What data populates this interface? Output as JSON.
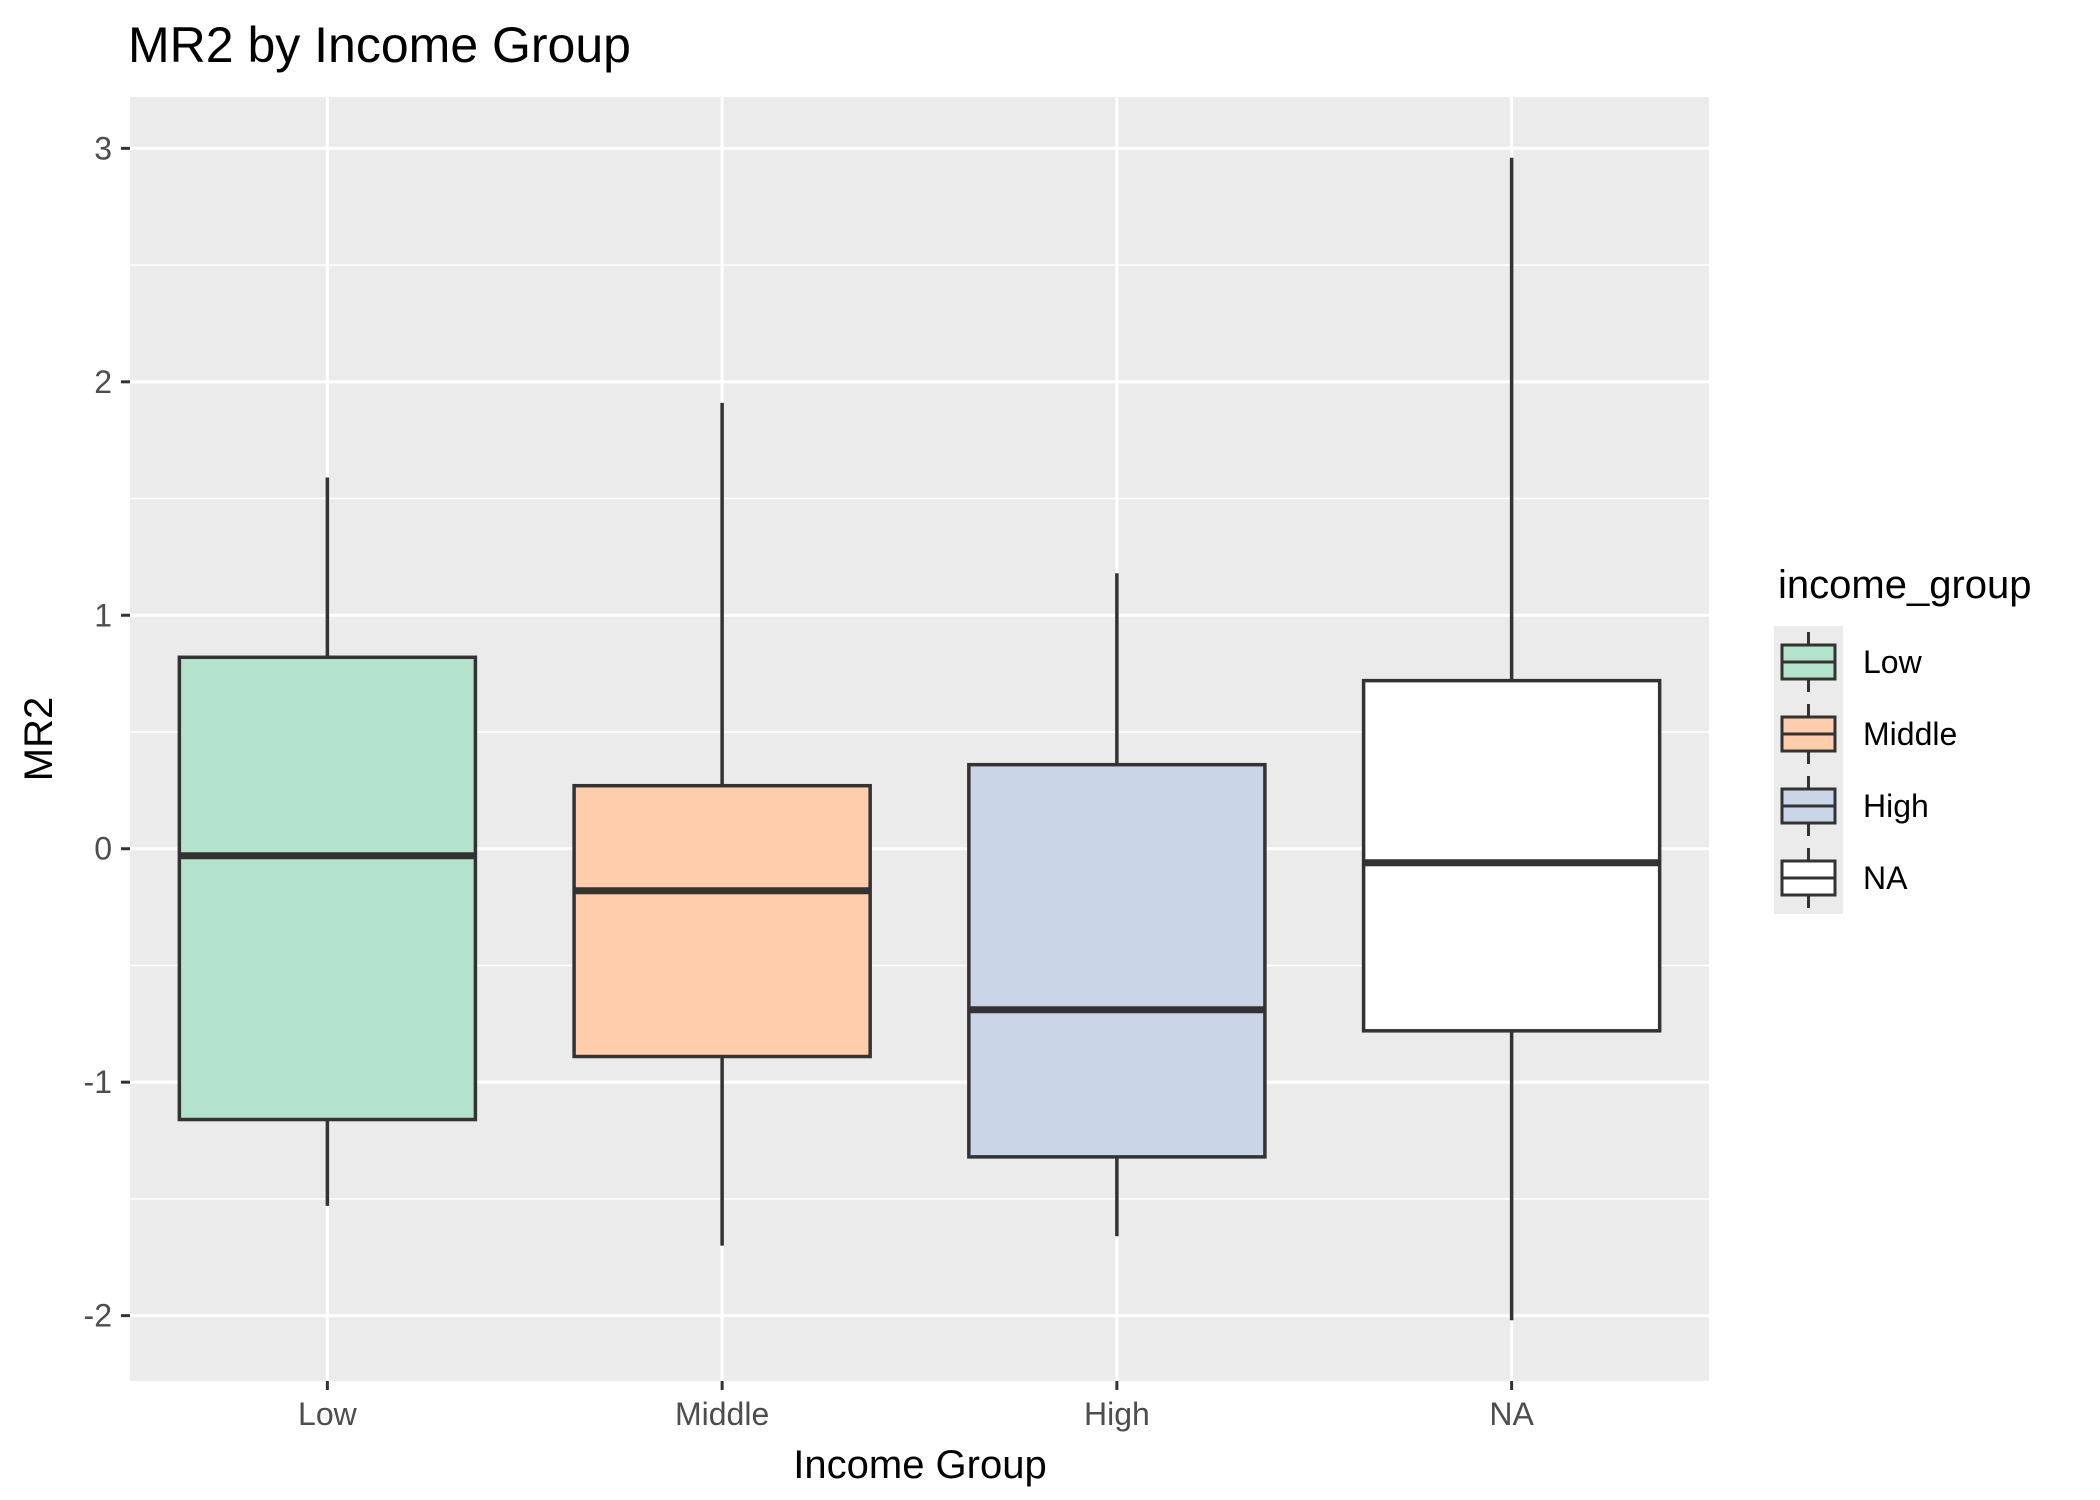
{
  "chart_data": {
    "type": "boxplot",
    "title": "MR2 by Income Group",
    "xlabel": "Income Group",
    "ylabel": "MR2",
    "categories": [
      "Low",
      "Middle",
      "High",
      "NA"
    ],
    "yticks": [
      "-2",
      "-1",
      "0",
      "1",
      "2",
      "3"
    ],
    "ylim": [
      -2.28,
      3.22
    ],
    "grid": true,
    "legend": {
      "title": "income_group",
      "position": "right",
      "entries": [
        "Low",
        "Middle",
        "High",
        "NA"
      ]
    },
    "boxes": [
      {
        "category": "Low",
        "min": -1.53,
        "q1": -1.16,
        "median": -0.03,
        "q3": 0.82,
        "max": 1.59,
        "fill": "#b3e2cd"
      },
      {
        "category": "Middle",
        "min": -1.7,
        "q1": -0.89,
        "median": -0.18,
        "q3": 0.27,
        "max": 1.91,
        "fill": "#fdcdac"
      },
      {
        "category": "High",
        "min": -1.66,
        "q1": -1.32,
        "median": -0.69,
        "q3": 0.36,
        "max": 1.18,
        "fill": "#cbd5e8"
      },
      {
        "category": "NA",
        "min": -2.02,
        "q1": -0.78,
        "median": -0.06,
        "q3": 0.72,
        "max": 2.96,
        "fill": "#ffffff"
      }
    ],
    "colors": {
      "panel": "#ebebeb",
      "grid_major": "#ffffff",
      "outline": "#333333"
    }
  }
}
